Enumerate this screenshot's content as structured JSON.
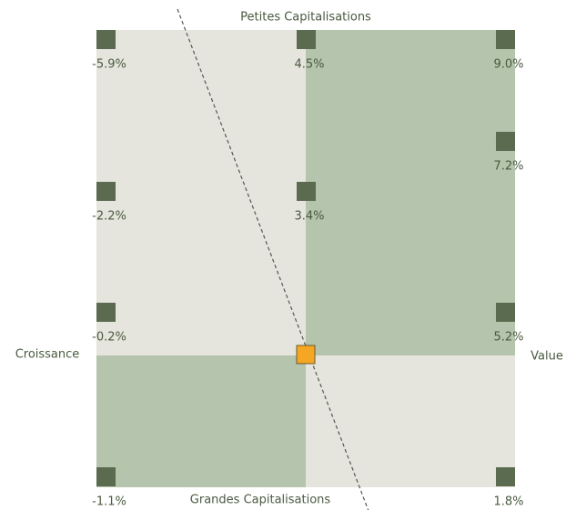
{
  "axes": {
    "top": "Petites Capitalisations",
    "bottom": "Grandes Capitalisations",
    "left": "Croissance",
    "right": "Value"
  },
  "nodes": [
    {
      "label": "-5.9%"
    },
    {
      "label": "4.5%"
    },
    {
      "label": "9.0%"
    },
    {
      "label": "7.2%"
    },
    {
      "label": "-2.2%"
    },
    {
      "label": "3.4%"
    },
    {
      "label": "-0.2%"
    },
    {
      "label": "5.2%"
    },
    {
      "label": "-1.1%"
    },
    {
      "label": "1.8%"
    }
  ]
}
